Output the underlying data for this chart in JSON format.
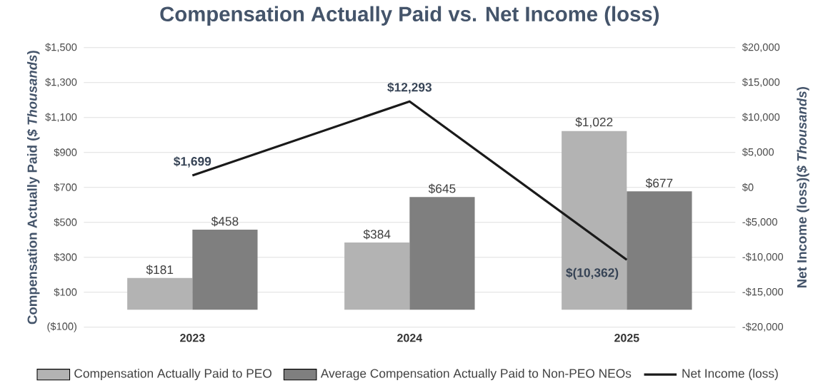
{
  "chart_data": {
    "type": "bar",
    "title": "Compensation Actually Paid vs. Net Income (loss)",
    "categories": [
      "2023",
      "2024",
      "2025"
    ],
    "series": [
      {
        "name": "Compensation Actually Paid  to PEO",
        "color": "#b3b3b3",
        "values": [
          181,
          384,
          1022
        ],
        "value_labels": [
          "$181",
          "$384",
          "$1,022"
        ]
      },
      {
        "name": "Average Compensation Actually Paid to Non-PEO NEOs",
        "color": "#7f7f7f",
        "values": [
          458,
          645,
          677
        ],
        "value_labels": [
          "$458",
          "$645",
          "$677"
        ]
      },
      {
        "name": "Net Income (loss)",
        "type": "line",
        "axis": "y2",
        "color": "#1a1a1a",
        "values": [
          1699,
          12293,
          -10362
        ],
        "value_labels": [
          "$1,699",
          "$12,293",
          "$(10,362)"
        ]
      }
    ],
    "ylabel": "Compensation Actually Paid (*$ Thousands*)",
    "y2label": "Net Income (loss)(*$ Thousands*)",
    "ylim": [
      -100,
      1500
    ],
    "yticks": [
      {
        "value": -100,
        "label": "($100)"
      },
      {
        "value": 100,
        "label": "$100"
      },
      {
        "value": 300,
        "label": "$300"
      },
      {
        "value": 500,
        "label": "$500"
      },
      {
        "value": 700,
        "label": "$700"
      },
      {
        "value": 900,
        "label": "$900"
      },
      {
        "value": 1100,
        "label": "$1,100"
      },
      {
        "value": 1300,
        "label": "$1,300"
      },
      {
        "value": 1500,
        "label": "$1,500"
      }
    ],
    "y2lim": [
      -20000,
      20000
    ],
    "y2ticks": [
      {
        "value": -20000,
        "label": "-$20,000"
      },
      {
        "value": -15000,
        "label": "-$15,000"
      },
      {
        "value": -10000,
        "label": "-$10,000"
      },
      {
        "value": -5000,
        "label": "-$5,000"
      },
      {
        "value": 0,
        "label": "$0"
      },
      {
        "value": 5000,
        "label": "$5,000"
      },
      {
        "value": 10000,
        "label": "$10,000"
      },
      {
        "value": 15000,
        "label": "$15,000"
      },
      {
        "value": 20000,
        "label": "$20,000"
      }
    ],
    "grid": "y",
    "legend": "bottom"
  }
}
